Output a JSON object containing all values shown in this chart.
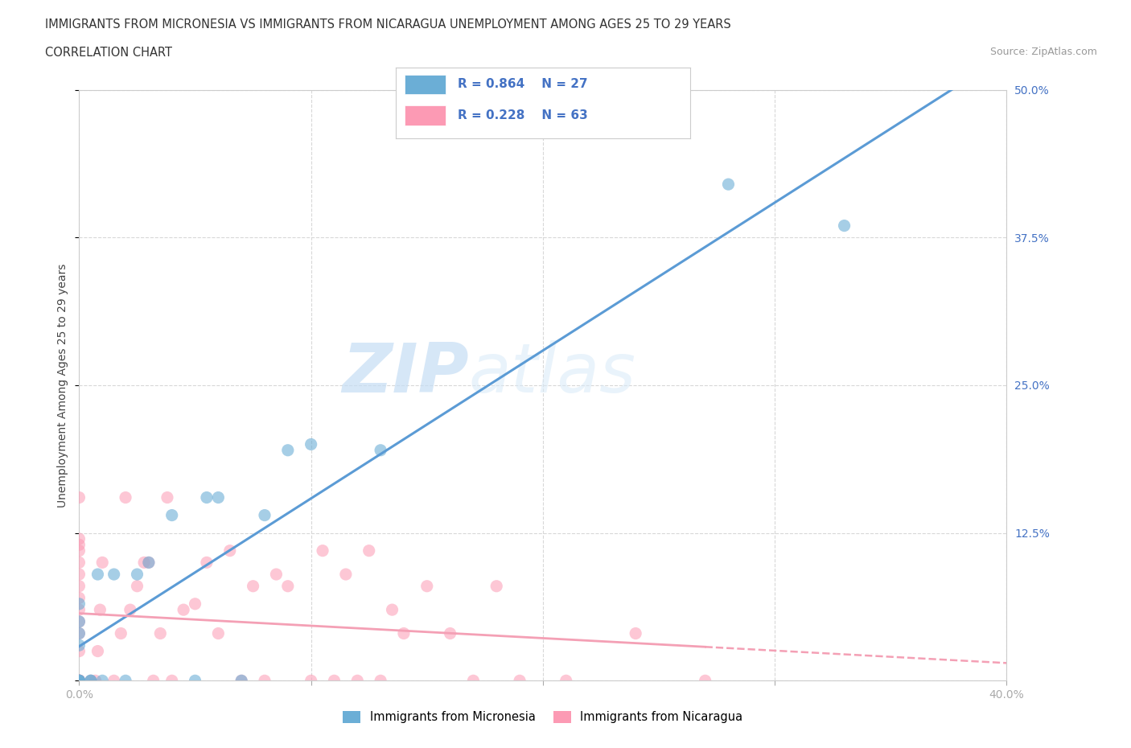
{
  "title_line1": "IMMIGRANTS FROM MICRONESIA VS IMMIGRANTS FROM NICARAGUA UNEMPLOYMENT AMONG AGES 25 TO 29 YEARS",
  "title_line2": "CORRELATION CHART",
  "source_text": "Source: ZipAtlas.com",
  "ylabel": "Unemployment Among Ages 25 to 29 years",
  "xlim": [
    0.0,
    0.4
  ],
  "ylim": [
    0.0,
    0.5
  ],
  "xticks": [
    0.0,
    0.1,
    0.2,
    0.3,
    0.4
  ],
  "xticklabels": [
    "0.0%",
    "",
    "",
    "",
    "40.0%"
  ],
  "yticks": [
    0.0,
    0.125,
    0.25,
    0.375,
    0.5
  ],
  "yticklabels_left": [
    "",
    "",
    "",
    "",
    ""
  ],
  "yticklabels_right": [
    "",
    "12.5%",
    "25.0%",
    "37.5%",
    "50.0%"
  ],
  "watermark_zip": "ZIP",
  "watermark_atlas": "atlas",
  "micronesia_color": "#6baed6",
  "nicaragua_color": "#fc9ab4",
  "micronesia_R": "0.864",
  "micronesia_N": "27",
  "nicaragua_R": "0.228",
  "nicaragua_N": "63",
  "legend_R_N_color": "#4472c4",
  "micronesia_x": [
    0.0,
    0.0,
    0.0,
    0.0,
    0.0,
    0.0,
    0.0,
    0.0,
    0.005,
    0.005,
    0.008,
    0.01,
    0.015,
    0.02,
    0.025,
    0.03,
    0.04,
    0.05,
    0.055,
    0.06,
    0.07,
    0.08,
    0.09,
    0.1,
    0.13,
    0.28,
    0.33
  ],
  "micronesia_y": [
    0.0,
    0.0,
    0.0,
    0.0,
    0.03,
    0.04,
    0.05,
    0.065,
    0.0,
    0.0,
    0.09,
    0.0,
    0.09,
    0.0,
    0.09,
    0.1,
    0.14,
    0.0,
    0.155,
    0.155,
    0.0,
    0.14,
    0.195,
    0.2,
    0.195,
    0.42,
    0.385
  ],
  "nicaragua_x": [
    0.0,
    0.0,
    0.0,
    0.0,
    0.0,
    0.0,
    0.0,
    0.0,
    0.0,
    0.0,
    0.0,
    0.0,
    0.0,
    0.0,
    0.0,
    0.0,
    0.0,
    0.0,
    0.0,
    0.0,
    0.005,
    0.007,
    0.008,
    0.009,
    0.01,
    0.015,
    0.018,
    0.02,
    0.022,
    0.025,
    0.028,
    0.03,
    0.032,
    0.035,
    0.038,
    0.04,
    0.045,
    0.05,
    0.055,
    0.06,
    0.065,
    0.07,
    0.075,
    0.08,
    0.085,
    0.09,
    0.1,
    0.105,
    0.11,
    0.115,
    0.12,
    0.125,
    0.13,
    0.135,
    0.14,
    0.15,
    0.16,
    0.17,
    0.18,
    0.19,
    0.21,
    0.24,
    0.27
  ],
  "nicaragua_y": [
    0.0,
    0.0,
    0.0,
    0.0,
    0.0,
    0.0,
    0.0,
    0.0,
    0.025,
    0.04,
    0.05,
    0.06,
    0.07,
    0.08,
    0.09,
    0.1,
    0.11,
    0.115,
    0.12,
    0.155,
    0.0,
    0.0,
    0.025,
    0.06,
    0.1,
    0.0,
    0.04,
    0.155,
    0.06,
    0.08,
    0.1,
    0.1,
    0.0,
    0.04,
    0.155,
    0.0,
    0.06,
    0.065,
    0.1,
    0.04,
    0.11,
    0.0,
    0.08,
    0.0,
    0.09,
    0.08,
    0.0,
    0.11,
    0.0,
    0.09,
    0.0,
    0.11,
    0.0,
    0.06,
    0.04,
    0.08,
    0.04,
    0.0,
    0.08,
    0.0,
    0.0,
    0.04,
    0.0
  ],
  "micronesia_line_color": "#5b9bd5",
  "nicaragua_line_color": "#f4a0b5",
  "nicaragua_line_dashed_color": "#f4a0b5",
  "grid_color": "#d8d8d8",
  "background_color": "#ffffff",
  "title_fontsize": 11,
  "axis_label_fontsize": 10,
  "tick_fontsize": 10
}
